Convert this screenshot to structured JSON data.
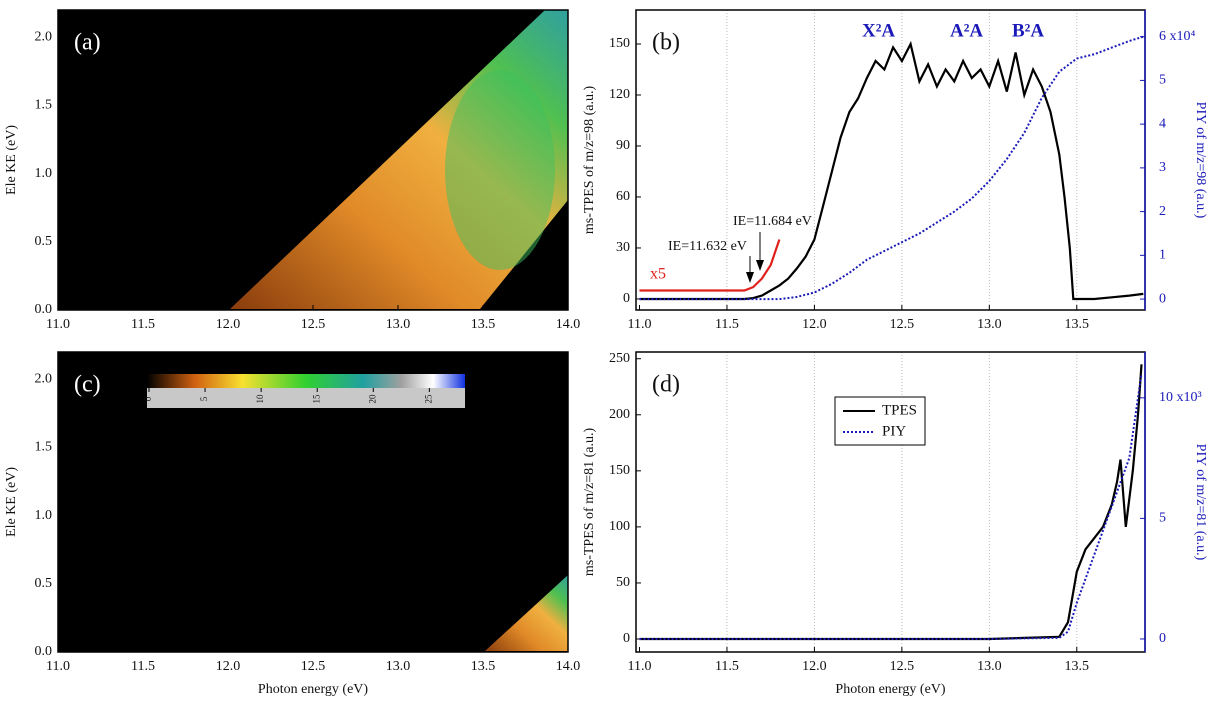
{
  "chart_data": [
    {
      "type": "heatmap",
      "panel_label": "(a)",
      "y_label": "Ele KE (eV)",
      "xlim": [
        11.0,
        14.0
      ],
      "ylim": [
        0,
        2.2
      ],
      "xticks": [
        {
          "value": 11.0,
          "label": "11.0"
        },
        {
          "value": 11.5,
          "label": "11.5"
        },
        {
          "value": 12.0,
          "label": "12.0"
        },
        {
          "value": 12.5,
          "label": "12.5"
        },
        {
          "value": 13.0,
          "label": "13.0"
        },
        {
          "value": 13.5,
          "label": "13.5"
        },
        {
          "value": 14.0,
          "label": "14.0"
        }
      ],
      "yticks": [
        {
          "value": 0,
          "label": "0.0"
        },
        {
          "value": 0.5,
          "label": "0.5"
        },
        {
          "value": 1.0,
          "label": "1.0"
        },
        {
          "value": 1.5,
          "label": "1.5"
        },
        {
          "value": 2.0,
          "label": "2.0"
        }
      ]
    },
    {
      "type": "line",
      "panel_label": "(b)",
      "y_label": "ms-TPES of m/z=98 (a.u.)",
      "y2_label": "PIY of m/z=98 (a.u.)",
      "xlim": [
        10.98,
        13.89
      ],
      "ylim": [
        -6.5,
        170
      ],
      "y2lim": [
        -0.25,
        6.61
      ],
      "grid": "x",
      "xticks": [
        {
          "value": 11.0,
          "label": "11.0"
        },
        {
          "value": 11.5,
          "label": "11.5"
        },
        {
          "value": 12.0,
          "label": "12.0"
        },
        {
          "value": 12.5,
          "label": "12.5"
        },
        {
          "value": 13.0,
          "label": "13.0"
        },
        {
          "value": 13.5,
          "label": "13.5"
        }
      ],
      "yticks": [
        0,
        30,
        60,
        90,
        120,
        150
      ],
      "y2ticks": [
        0,
        1,
        2,
        3,
        4,
        5,
        {
          "value": 6,
          "label": "6 x10⁴"
        }
      ],
      "series": [
        {
          "color": "#000000",
          "style": "solid",
          "x": [
            11.0,
            11.3,
            11.6,
            11.65,
            11.7,
            11.75,
            11.8,
            11.85,
            11.9,
            11.95,
            12.0,
            12.05,
            12.1,
            12.15,
            12.2,
            12.25,
            12.3,
            12.35,
            12.4,
            12.45,
            12.5,
            12.55,
            12.6,
            12.65,
            12.7,
            12.75,
            12.8,
            12.85,
            12.9,
            12.95,
            13.0,
            13.05,
            13.1,
            13.15,
            13.2,
            13.25,
            13.3,
            13.35,
            13.4,
            13.43,
            13.46,
            13.48,
            13.6,
            13.7,
            13.8,
            13.88
          ],
          "values": [
            0,
            0,
            0,
            0.5,
            2,
            5,
            8,
            12,
            18,
            25,
            35,
            55,
            75,
            95,
            110,
            118,
            130,
            140,
            135,
            148,
            140,
            150,
            128,
            138,
            125,
            135,
            128,
            140,
            130,
            135,
            125,
            140,
            122,
            145,
            120,
            135,
            125,
            110,
            85,
            60,
            30,
            0,
            0,
            1,
            2,
            3
          ]
        },
        {
          "color": "#e0201b",
          "style": "solid",
          "x": [
            11.0,
            11.3,
            11.6,
            11.65,
            11.7,
            11.75,
            11.8
          ],
          "values": [
            5,
            5,
            5,
            7,
            12,
            20,
            35
          ]
        },
        {
          "color": "#1a1ab8",
          "style": "dotted",
          "axis": "y2",
          "x": [
            11.0,
            11.8,
            11.9,
            12.0,
            12.1,
            12.2,
            12.3,
            12.4,
            12.5,
            12.6,
            12.7,
            12.8,
            12.9,
            13.0,
            13.1,
            13.2,
            13.3,
            13.4,
            13.5,
            13.6,
            13.7,
            13.8,
            13.88
          ],
          "values": [
            0,
            0,
            0.05,
            0.15,
            0.35,
            0.6,
            0.9,
            1.1,
            1.3,
            1.5,
            1.75,
            2.0,
            2.3,
            2.7,
            3.2,
            3.8,
            4.6,
            5.2,
            5.5,
            5.6,
            5.75,
            5.9,
            6.0
          ]
        }
      ],
      "annotations": [
        {
          "text": "x5",
          "color": "#e0201b"
        },
        {
          "text": "IE=11.632 eV",
          "color": "#111111"
        },
        {
          "text": "IE=11.684 eV",
          "color": "#111111"
        },
        {
          "text": "X²A",
          "color": "#1a1ab8"
        },
        {
          "text": "A²A",
          "color": "#1a1ab8"
        },
        {
          "text": "B²A",
          "color": "#1a1ab8"
        }
      ]
    },
    {
      "type": "heatmap",
      "panel_label": "(c)",
      "y_label": "Ele KE (eV)",
      "x_label": "Photon energy (eV)",
      "xlim": [
        11.0,
        14.0
      ],
      "ylim": [
        0,
        2.2
      ],
      "xticks": [
        {
          "value": 11.0,
          "label": "11.0"
        },
        {
          "value": 11.5,
          "label": "11.5"
        },
        {
          "value": 12.0,
          "label": "12.0"
        },
        {
          "value": 12.5,
          "label": "12.5"
        },
        {
          "value": 13.0,
          "label": "13.0"
        },
        {
          "value": 13.5,
          "label": "13.5"
        },
        {
          "value": 14.0,
          "label": "14.0"
        }
      ],
      "yticks": [
        {
          "value": 0,
          "label": "0.0"
        },
        {
          "value": 0.5,
          "label": "0.5"
        },
        {
          "value": 1.0,
          "label": "1.0"
        },
        {
          "value": 1.5,
          "label": "1.5"
        },
        {
          "value": 2.0,
          "label": "2.0"
        }
      ],
      "colorbar": {
        "lim": [
          0,
          28
        ],
        "ticks": [
          0,
          5,
          10,
          15,
          20,
          25
        ]
      }
    },
    {
      "type": "line",
      "panel_label": "(d)",
      "y_label": "ms-TPES of m/z=81 (a.u.)",
      "y2_label": "PIY of m/z=81 (a.u.)",
      "x_label": "Photon energy (eV)",
      "xlim": [
        10.98,
        13.89
      ],
      "ylim": [
        -11.6,
        256
      ],
      "y2lim": [
        -0.54,
        11.9
      ],
      "grid": "x",
      "legend": "top-center",
      "xticks": [
        {
          "value": 11.0,
          "label": "11.0"
        },
        {
          "value": 11.5,
          "label": "11.5"
        },
        {
          "value": 12.0,
          "label": "12.0"
        },
        {
          "value": 12.5,
          "label": "12.5"
        },
        {
          "value": 13.0,
          "label": "13.0"
        },
        {
          "value": 13.5,
          "label": "13.5"
        }
      ],
      "yticks": [
        0,
        50,
        100,
        150,
        200,
        250
      ],
      "y2ticks": [
        0,
        5,
        {
          "value": 10,
          "label": "10 x10³"
        }
      ],
      "series": [
        {
          "name": "TPES",
          "color": "#000000",
          "style": "solid",
          "x": [
            11.0,
            13.0,
            13.4,
            13.45,
            13.5,
            13.55,
            13.6,
            13.65,
            13.7,
            13.73,
            13.75,
            13.78,
            13.82,
            13.85,
            13.87
          ],
          "values": [
            0,
            0,
            2,
            15,
            60,
            80,
            90,
            100,
            120,
            140,
            160,
            100,
            150,
            200,
            245
          ]
        },
        {
          "name": "PIY",
          "color": "#1a1ab8",
          "style": "dotted",
          "axis": "y2",
          "x": [
            11.0,
            13.0,
            13.4,
            13.45,
            13.5,
            13.6,
            13.7,
            13.8,
            13.87
          ],
          "values": [
            0,
            0,
            0.05,
            0.3,
            1.5,
            3.5,
            5.5,
            7.5,
            11
          ]
        }
      ]
    }
  ]
}
